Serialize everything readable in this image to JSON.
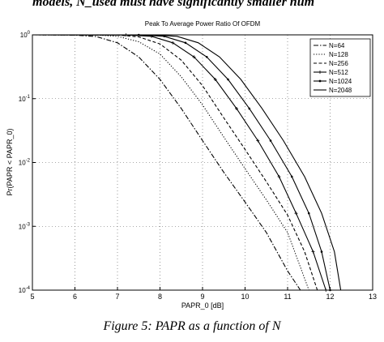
{
  "page": {
    "top_text": "models, N_used must have significantly smaller num",
    "caption": "Figure 5: PAPR as a function of N"
  },
  "chart_data": {
    "type": "line",
    "title": "Peak To Average Power Ratio Of OFDM",
    "xlabel": "PAPR_0 [dB]",
    "ylabel": "Pr(PAPR < PAPR_0)",
    "xlim": [
      5,
      13
    ],
    "ylim": [
      0.0001,
      1
    ],
    "yscale": "log",
    "x_ticks": [
      "5",
      "6",
      "7",
      "8",
      "9",
      "10",
      "11",
      "12",
      "13"
    ],
    "y_ticks": [
      "10^0",
      "10^-1",
      "10^-2",
      "10^-3",
      "10^-4"
    ],
    "grid": true,
    "legend_position": "top-right",
    "series": [
      {
        "name": "N=64",
        "style": "dashdot",
        "points": [
          [
            5,
            1
          ],
          [
            6,
            0.99
          ],
          [
            6.5,
            0.94
          ],
          [
            7,
            0.75
          ],
          [
            7.5,
            0.45
          ],
          [
            8,
            0.2
          ],
          [
            8.5,
            0.07
          ],
          [
            9,
            0.022
          ],
          [
            9.5,
            0.007
          ],
          [
            10,
            0.0024
          ],
          [
            10.5,
            0.0008
          ],
          [
            11,
            0.0002
          ],
          [
            11.3,
            0.0001
          ]
        ]
      },
      {
        "name": "N=128",
        "style": "dotted",
        "points": [
          [
            5,
            1
          ],
          [
            6.5,
            0.995
          ],
          [
            7,
            0.95
          ],
          [
            7.5,
            0.78
          ],
          [
            8,
            0.5
          ],
          [
            8.5,
            0.22
          ],
          [
            9,
            0.08
          ],
          [
            9.5,
            0.025
          ],
          [
            10,
            0.008
          ],
          [
            10.5,
            0.0026
          ],
          [
            11,
            0.0008
          ],
          [
            11.5,
            0.0001
          ]
        ]
      },
      {
        "name": "N=256",
        "style": "dashed",
        "points": [
          [
            5,
            1
          ],
          [
            7,
            0.995
          ],
          [
            7.5,
            0.93
          ],
          [
            8,
            0.72
          ],
          [
            8.5,
            0.4
          ],
          [
            9,
            0.16
          ],
          [
            9.5,
            0.05
          ],
          [
            10,
            0.016
          ],
          [
            10.5,
            0.005
          ],
          [
            11,
            0.0015
          ],
          [
            11.4,
            0.0004
          ],
          [
            11.7,
            0.0001
          ]
        ]
      },
      {
        "name": "N=512",
        "style": "solid-star",
        "points": [
          [
            5,
            1
          ],
          [
            7.2,
            0.998
          ],
          [
            7.8,
            0.95
          ],
          [
            8.3,
            0.75
          ],
          [
            8.8,
            0.45
          ],
          [
            9.3,
            0.2
          ],
          [
            9.8,
            0.07
          ],
          [
            10.3,
            0.022
          ],
          [
            10.8,
            0.006
          ],
          [
            11.2,
            0.0016
          ],
          [
            11.6,
            0.0004
          ],
          [
            11.9,
            0.0001
          ]
        ]
      },
      {
        "name": "N=1024",
        "style": "solid-dot",
        "points": [
          [
            5,
            1
          ],
          [
            7.5,
            0.998
          ],
          [
            8.1,
            0.95
          ],
          [
            8.6,
            0.75
          ],
          [
            9.1,
            0.45
          ],
          [
            9.6,
            0.2
          ],
          [
            10.1,
            0.07
          ],
          [
            10.6,
            0.022
          ],
          [
            11.1,
            0.006
          ],
          [
            11.5,
            0.0016
          ],
          [
            11.8,
            0.0004
          ],
          [
            12,
            0.0001
          ]
        ]
      },
      {
        "name": "N=2048",
        "style": "solid",
        "points": [
          [
            5,
            1
          ],
          [
            7.8,
            0.998
          ],
          [
            8.4,
            0.95
          ],
          [
            8.9,
            0.75
          ],
          [
            9.4,
            0.45
          ],
          [
            9.9,
            0.2
          ],
          [
            10.4,
            0.07
          ],
          [
            10.9,
            0.022
          ],
          [
            11.4,
            0.006
          ],
          [
            11.8,
            0.0016
          ],
          [
            12.1,
            0.0004
          ],
          [
            12.25,
            0.0001
          ]
        ]
      }
    ]
  }
}
